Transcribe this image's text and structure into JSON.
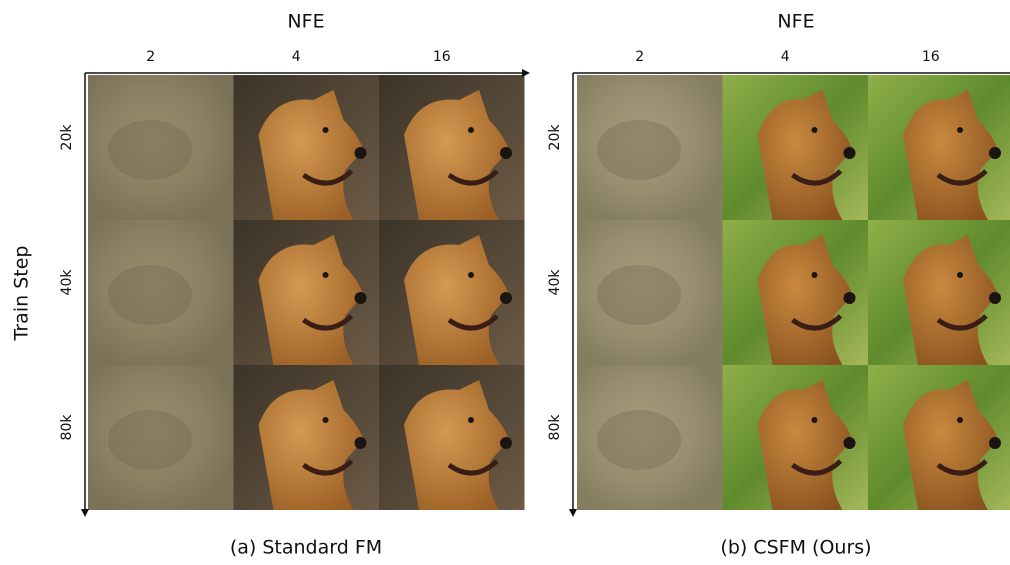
{
  "train_step_label": "Train Step",
  "panels": [
    {
      "x_axis_title": "NFE",
      "columns": [
        "2",
        "4",
        "16"
      ],
      "rows": [
        "20k",
        "40k",
        "80k"
      ],
      "caption": "(a) Standard FM"
    },
    {
      "x_axis_title": "NFE",
      "columns": [
        "2",
        "4",
        "16"
      ],
      "rows": [
        "20k",
        "40k",
        "80k"
      ],
      "caption": "(b) CSFM (Ours)"
    }
  ]
}
